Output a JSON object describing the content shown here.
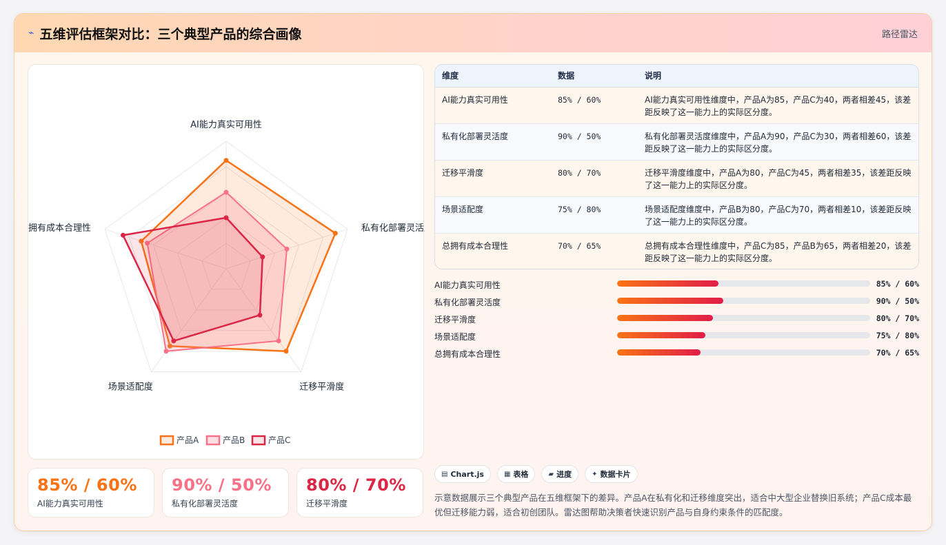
{
  "header": {
    "icon": "bolt-icon",
    "title": "五维评估框架对比：三个典型产品的综合画像",
    "tag": "路径雷达"
  },
  "chart_data": {
    "type": "radar",
    "axes": [
      "AI能力真实可用性",
      "私有化部署灵活度",
      "迁移平滑度",
      "场景适配度",
      "总拥有成本合理性"
    ],
    "range": [
      0,
      100
    ],
    "series": [
      {
        "name": "产品A",
        "values": [
          85,
          90,
          80,
          75,
          70
        ],
        "color": "#f97316"
      },
      {
        "name": "产品B",
        "values": [
          60,
          50,
          70,
          80,
          65
        ],
        "color": "#f87187"
      },
      {
        "name": "产品C",
        "values": [
          40,
          30,
          45,
          70,
          85
        ],
        "color": "#dc2646"
      }
    ],
    "legend": "bottom"
  },
  "kpis": [
    {
      "value": "85% / 60%",
      "label": "AI能力真实可用性",
      "color": "#f97316"
    },
    {
      "value": "90% / 50%",
      "label": "私有化部署灵活度",
      "color": "#f87187"
    },
    {
      "value": "80% / 70%",
      "label": "迁移平滑度",
      "color": "#dc2646"
    }
  ],
  "table": {
    "headers": [
      "维度",
      "数据",
      "说明"
    ],
    "rows": [
      {
        "dim": "AI能力真实可用性",
        "data": "85% / 60%",
        "desc": "AI能力真实可用性维度中，产品A为85，产品C为40，两者相差45，该差距反映了这一能力上的实际区分度。"
      },
      {
        "dim": "私有化部署灵活度",
        "data": "90% / 50%",
        "desc": "私有化部署灵活度维度中，产品A为90，产品C为30，两者相差60，该差距反映了这一能力上的实际区分度。"
      },
      {
        "dim": "迁移平滑度",
        "data": "80% / 70%",
        "desc": "迁移平滑度维度中，产品A为80，产品C为45，两者相差35，该差距反映了这一能力上的实际区分度。"
      },
      {
        "dim": "场景适配度",
        "data": "75% / 80%",
        "desc": "场景适配度维度中，产品B为80，产品C为70，两者相差10，该差距反映了这一能力上的实际区分度。"
      },
      {
        "dim": "总拥有成本合理性",
        "data": "70% / 65%",
        "desc": "总拥有成本合理性维度中，产品C为85，产品B为65，两者相差20，该差距反映了这一能力上的实际区分度。"
      }
    ]
  },
  "bars": [
    {
      "label": "AI能力真实可用性",
      "value": "85% / 60%",
      "fill": 0.4
    },
    {
      "label": "私有化部署灵活度",
      "value": "90% / 50%",
      "fill": 0.42
    },
    {
      "label": "迁移平滑度",
      "value": "80% / 70%",
      "fill": 0.38
    },
    {
      "label": "场景适配度",
      "value": "75% / 80%",
      "fill": 0.35
    },
    {
      "label": "总拥有成本合理性",
      "value": "70% / 65%",
      "fill": 0.33
    }
  ],
  "chips": [
    {
      "icon": "chart-icon",
      "glyph": "▤",
      "label": "Chart.js"
    },
    {
      "icon": "table-icon",
      "glyph": "▦",
      "label": "表格"
    },
    {
      "icon": "progress-icon",
      "glyph": "▰",
      "label": "进度"
    },
    {
      "icon": "sparkle-icon",
      "glyph": "✦",
      "label": "数据卡片"
    }
  ],
  "description": "示意数据展示三个典型产品在五维框架下的差异。产品A在私有化和迁移维度突出，适合中大型企业替换旧系统；产品C成本最优但迁移能力弱，适合初创团队。雷达图帮助决策者快速识别产品与自身约束条件的匹配度。"
}
